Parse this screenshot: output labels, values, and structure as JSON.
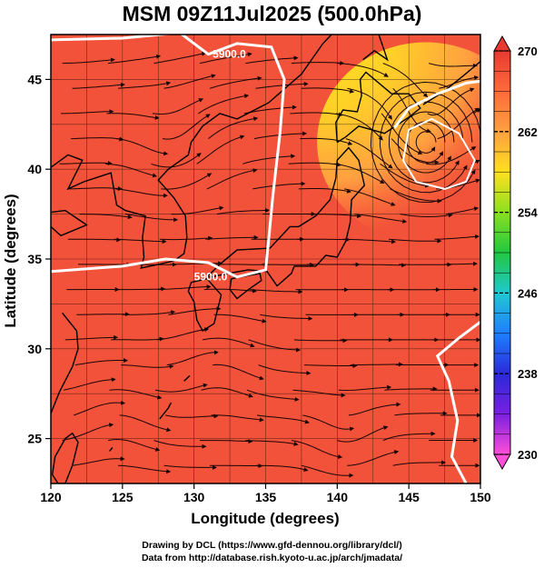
{
  "title": "MSM 09Z11Jul2025 (500.0hPa)",
  "axes": {
    "xlabel": "Longitude (degrees)",
    "ylabel": "Latitude  (degrees)",
    "xlim": [
      120,
      150
    ],
    "ylim": [
      22.5,
      47.5
    ],
    "xticks": [
      "120",
      "125",
      "130",
      "135",
      "140",
      "145",
      "150"
    ],
    "yticks": [
      "25",
      "30",
      "35",
      "40",
      "45"
    ]
  },
  "colorbar": {
    "min": 230,
    "max": 270,
    "labels": [
      "270",
      "262",
      "254",
      "246",
      "238",
      "230"
    ],
    "colors": [
      "#ff4fd8",
      "#7a1fe0",
      "#2a2ad8",
      "#1f7fff",
      "#20c8d0",
      "#20c840",
      "#8be020",
      "#ffe020",
      "#ffa040",
      "#ff6a3c",
      "#e83a30"
    ]
  },
  "contours": {
    "label": "5900.0",
    "color": "#ffffff"
  },
  "low_center": {
    "lon": 146.2,
    "lat": 41.5
  },
  "credits": {
    "line1": "Drawing by DCL (https://www.gfd-dennou.org/library/dcl/)",
    "line2": "Data from http://database.rish.kyoto-u.ac.jp/arch/jmadata/"
  }
}
